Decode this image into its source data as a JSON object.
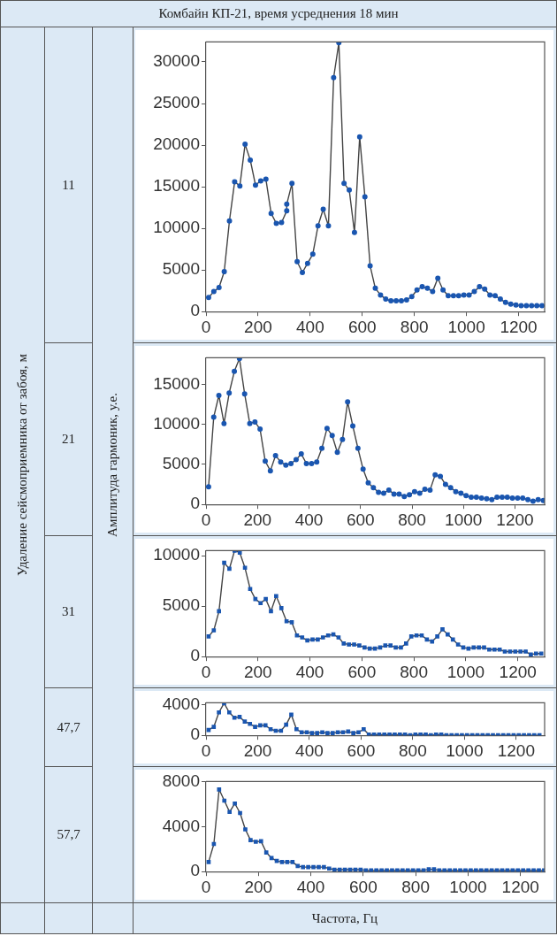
{
  "chart_data": [
    {
      "type": "line",
      "title": "Комбайн КП-21, время усреднения 18 мин",
      "annotations": [
        "Удаление сейсмоприемника от забоя, м",
        "11"
      ],
      "marker": "circle",
      "grid": false,
      "legend": false,
      "xlim": [
        0,
        1300
      ],
      "ylim": [
        0,
        32400
      ],
      "xticks": [
        0,
        200,
        400,
        600,
        800,
        1000,
        1200
      ],
      "yticks": [
        0,
        5000,
        10000,
        15000,
        20000,
        25000,
        30000
      ],
      "x": [
        10,
        30,
        50,
        70,
        90,
        110,
        130,
        150,
        170,
        190,
        210,
        230,
        250,
        270,
        290,
        310,
        310,
        330,
        350,
        370,
        390,
        410,
        430,
        450,
        470,
        490,
        510,
        530,
        550,
        570,
        590,
        610,
        630,
        650,
        670,
        690,
        710,
        730,
        750,
        770,
        790,
        810,
        830,
        850,
        870,
        890,
        910,
        930,
        950,
        970,
        990,
        1010,
        1030,
        1050,
        1070,
        1090,
        1110,
        1130,
        1150,
        1170,
        1190,
        1210,
        1230,
        1250,
        1270,
        1290
      ],
      "series": [
        {
          "color": "#1a56b0",
          "values": [
            1700,
            2400,
            2900,
            4800,
            10900,
            15600,
            15100,
            20100,
            18200,
            15200,
            15700,
            15900,
            11800,
            10600,
            10700,
            12100,
            12900,
            15400,
            6000,
            4700,
            5800,
            6900,
            10300,
            12300,
            10300,
            28100,
            32300,
            15400,
            14600,
            9500,
            21000,
            13800,
            5500,
            2800,
            2000,
            1500,
            1300,
            1300,
            1300,
            1400,
            1800,
            2600,
            3000,
            2800,
            2400,
            4000,
            2600,
            1900,
            1900,
            1900,
            2000,
            2000,
            2400,
            3000,
            2700,
            2000,
            1900,
            1500,
            1100,
            900,
            800,
            700,
            700,
            700,
            700,
            700
          ]
        }
      ]
    },
    {
      "type": "line",
      "ylabel": "Амплитуда гармоник, у.е.",
      "annotations": [
        "21"
      ],
      "marker": "circle",
      "grid": false,
      "legend": false,
      "xlim": [
        0,
        1315
      ],
      "ylim": [
        0,
        18300
      ],
      "xticks": [
        0,
        200,
        400,
        600,
        800,
        1000,
        1200
      ],
      "yticks": [
        0,
        5000,
        10000,
        15000
      ],
      "x": [
        10,
        30,
        50,
        70,
        90,
        110,
        130,
        150,
        170,
        190,
        210,
        230,
        250,
        270,
        290,
        310,
        330,
        350,
        370,
        390,
        410,
        430,
        450,
        470,
        490,
        510,
        530,
        550,
        570,
        590,
        610,
        630,
        650,
        670,
        690,
        710,
        730,
        750,
        770,
        790,
        810,
        830,
        850,
        870,
        890,
        910,
        930,
        950,
        970,
        990,
        1010,
        1030,
        1050,
        1070,
        1090,
        1110,
        1130,
        1150,
        1170,
        1190,
        1210,
        1230,
        1250,
        1270,
        1290,
        1310
      ],
      "series": [
        {
          "color": "#1a56b0",
          "values": [
            2200,
            10900,
            13600,
            10100,
            13900,
            16600,
            18200,
            13800,
            10100,
            10300,
            9400,
            5400,
            4200,
            6100,
            5300,
            4900,
            5100,
            5600,
            6300,
            5100,
            5100,
            5300,
            7000,
            9500,
            8600,
            6500,
            8100,
            12800,
            9800,
            7000,
            4400,
            2700,
            2100,
            1500,
            1400,
            1800,
            1300,
            1300,
            1000,
            1200,
            1600,
            1400,
            1900,
            1800,
            3700,
            3500,
            2500,
            2100,
            1600,
            1400,
            1100,
            900,
            900,
            800,
            700,
            600,
            900,
            900,
            900,
            800,
            800,
            800,
            600,
            400,
            600,
            500
          ]
        }
      ]
    },
    {
      "type": "line",
      "annotations": [
        "31"
      ],
      "marker": "square",
      "grid": false,
      "legend": false,
      "xlim": [
        0,
        1303
      ],
      "ylim": [
        0,
        10500
      ],
      "xticks": [
        0,
        200,
        400,
        600,
        800,
        1000,
        1200
      ],
      "yticks": [
        0,
        5000,
        10000
      ],
      "x": [
        10,
        30,
        50,
        70,
        90,
        110,
        130,
        150,
        170,
        190,
        210,
        230,
        250,
        270,
        290,
        310,
        330,
        350,
        370,
        390,
        410,
        430,
        450,
        470,
        490,
        510,
        530,
        550,
        570,
        590,
        610,
        630,
        650,
        670,
        690,
        710,
        730,
        750,
        770,
        790,
        810,
        830,
        850,
        870,
        890,
        910,
        930,
        950,
        970,
        990,
        1010,
        1030,
        1050,
        1070,
        1090,
        1110,
        1130,
        1150,
        1170,
        1190,
        1210,
        1230,
        1250,
        1270,
        1290
      ],
      "series": [
        {
          "color": "#1a56b0",
          "values": [
            2000,
            2600,
            4500,
            9300,
            8700,
            10500,
            10300,
            8800,
            6700,
            5700,
            5300,
            5700,
            4500,
            6000,
            4800,
            3500,
            3400,
            2100,
            1900,
            1600,
            1700,
            1700,
            1900,
            2100,
            2200,
            1900,
            1300,
            1200,
            1200,
            1100,
            900,
            800,
            800,
            900,
            1100,
            1100,
            900,
            900,
            1300,
            2000,
            2100,
            2100,
            1700,
            1500,
            2000,
            2700,
            2200,
            1700,
            1200,
            900,
            800,
            900,
            900,
            900,
            700,
            700,
            700,
            500,
            500,
            500,
            500,
            500,
            200,
            300,
            300
          ]
        }
      ]
    },
    {
      "type": "line",
      "annotations": [
        "47,7"
      ],
      "marker": "square",
      "grid": false,
      "legend": false,
      "xlim": [
        0,
        1310
      ],
      "ylim": [
        0,
        4250
      ],
      "xticks": [
        0,
        200,
        400,
        600,
        800,
        1000,
        1200
      ],
      "yticks": [
        0,
        4000
      ],
      "x": [
        10,
        30,
        50,
        70,
        90,
        110,
        130,
        150,
        170,
        190,
        210,
        230,
        250,
        270,
        290,
        310,
        330,
        350,
        370,
        390,
        410,
        430,
        450,
        470,
        490,
        510,
        530,
        550,
        570,
        590,
        610,
        630,
        650,
        670,
        690,
        710,
        730,
        750,
        770,
        790,
        810,
        830,
        850,
        870,
        890,
        910,
        930,
        950,
        970,
        990,
        1010,
        1030,
        1050,
        1070,
        1090,
        1110,
        1130,
        1150,
        1170,
        1190,
        1210,
        1230,
        1250,
        1270,
        1290
      ],
      "series": [
        {
          "color": "#1a56b0",
          "values": [
            700,
            1100,
            3000,
            4200,
            3000,
            2300,
            2400,
            1800,
            1500,
            1100,
            1300,
            1300,
            800,
            600,
            600,
            1400,
            2700,
            800,
            400,
            400,
            300,
            300,
            400,
            300,
            300,
            400,
            400,
            500,
            300,
            400,
            800,
            100,
            100,
            100,
            100,
            100,
            100,
            100,
            100,
            0,
            100,
            100,
            100,
            0,
            100,
            100,
            0,
            0,
            0,
            0,
            0,
            0,
            0,
            0,
            0,
            0,
            0,
            0,
            0,
            0,
            0,
            0,
            0,
            0,
            0
          ]
        }
      ]
    },
    {
      "type": "line",
      "annotations": [
        "57,7"
      ],
      "xlabel": "Частота, Гц",
      "marker": "square",
      "grid": false,
      "legend": false,
      "xlim": [
        0,
        1292
      ],
      "ylim": [
        0,
        8000
      ],
      "xticks": [
        0,
        200,
        400,
        600,
        800,
        1000,
        1200
      ],
      "yticks": [
        0,
        4000,
        8000
      ],
      "x": [
        10,
        30,
        50,
        70,
        90,
        110,
        130,
        150,
        170,
        190,
        210,
        230,
        250,
        270,
        290,
        310,
        330,
        350,
        370,
        390,
        410,
        430,
        450,
        470,
        490,
        510,
        530,
        550,
        570,
        590,
        610,
        630,
        650,
        670,
        690,
        710,
        730,
        750,
        770,
        790,
        810,
        830,
        850,
        870,
        890,
        910,
        930,
        950,
        970,
        990,
        1010,
        1030,
        1050,
        1070,
        1090,
        1110,
        1130,
        1150,
        1170,
        1190,
        1210,
        1230,
        1250,
        1270,
        1290
      ],
      "series": [
        {
          "color": "#1a56b0",
          "values": [
            850,
            2450,
            7300,
            6300,
            5300,
            6050,
            5200,
            3750,
            2800,
            2650,
            2700,
            1700,
            1200,
            950,
            850,
            850,
            850,
            500,
            400,
            400,
            400,
            400,
            400,
            270,
            170,
            170,
            170,
            170,
            170,
            170,
            100,
            100,
            100,
            100,
            100,
            100,
            100,
            100,
            100,
            100,
            100,
            100,
            200,
            200,
            100,
            100,
            100,
            100,
            100,
            100,
            100,
            100,
            100,
            100,
            100,
            100,
            100,
            100,
            100,
            100,
            100,
            100,
            100,
            100,
            100
          ]
        }
      ]
    }
  ]
}
